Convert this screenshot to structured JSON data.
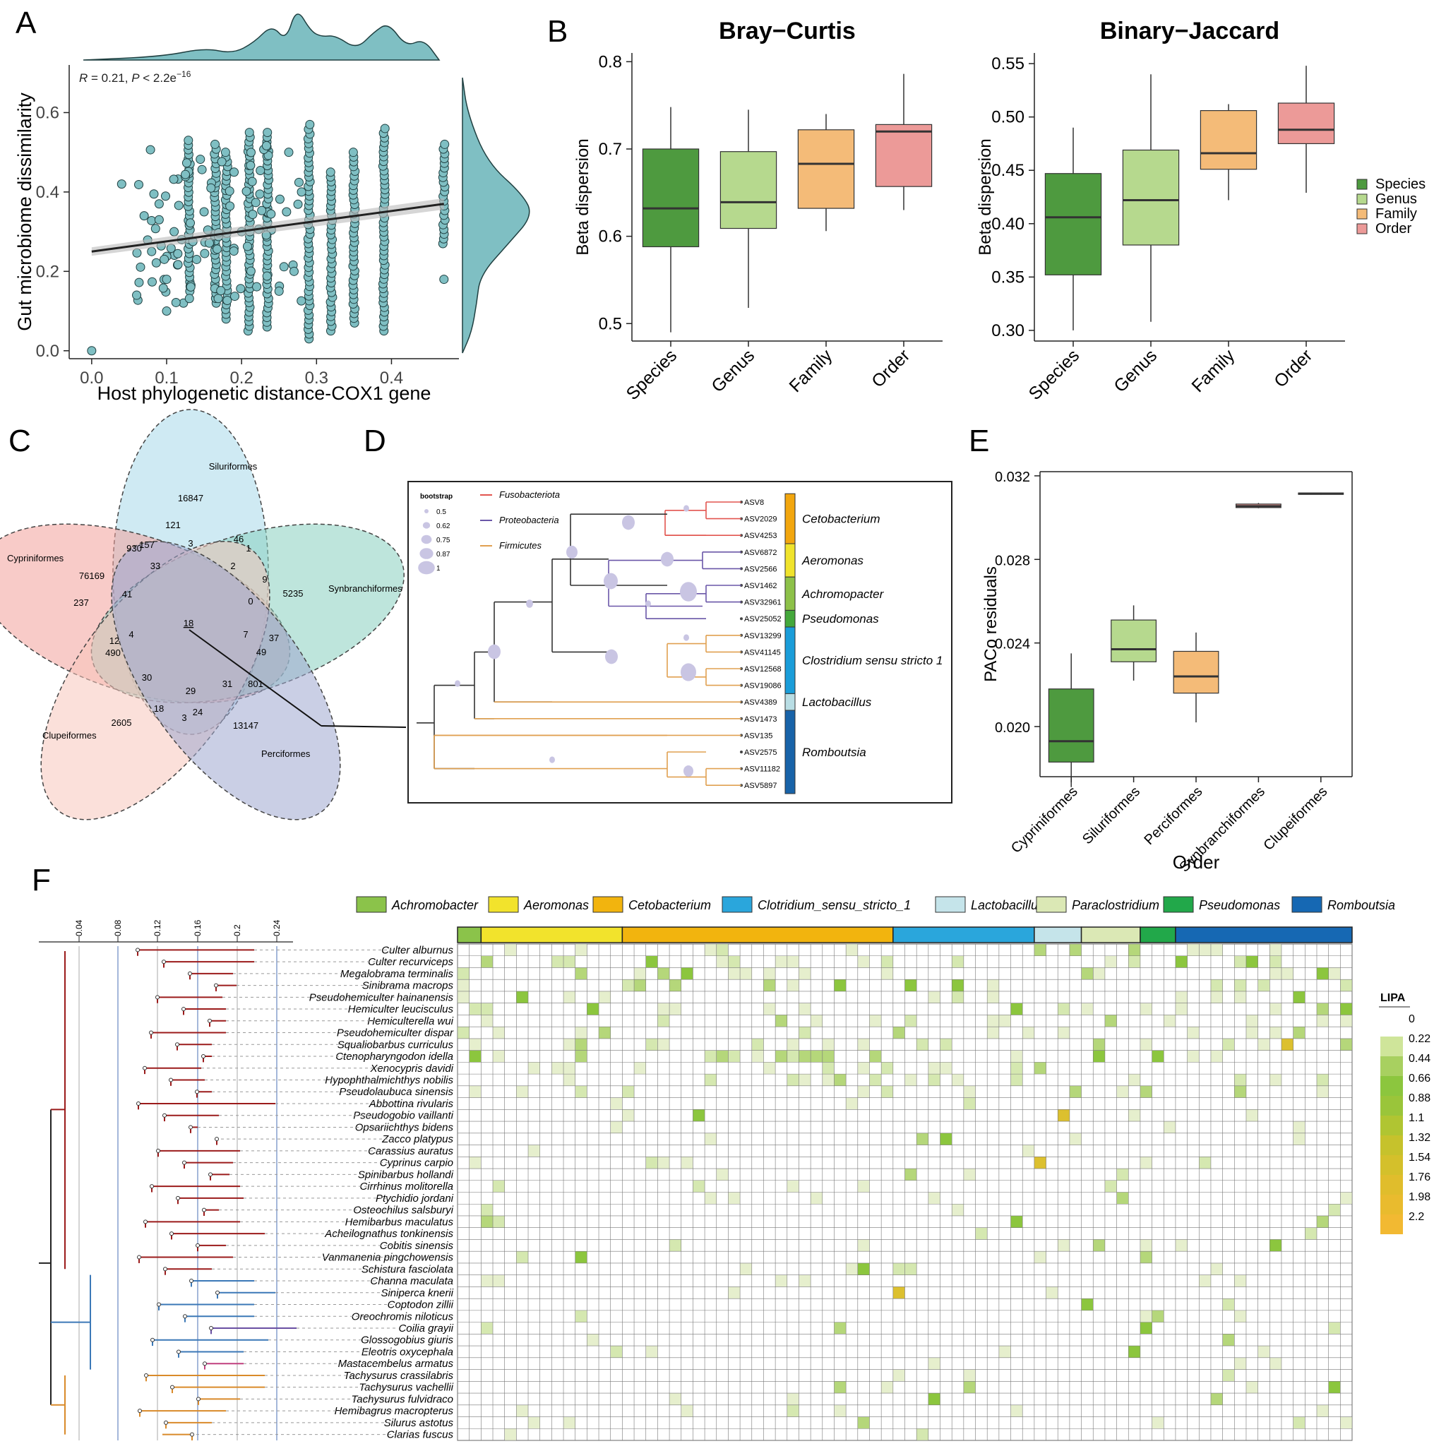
{
  "panel_labels": [
    "A",
    "B",
    "C",
    "D",
    "E",
    "F"
  ],
  "chart_data": [
    {
      "panel": "A",
      "type": "scatter",
      "xlabel": "Host phylogenetic distance-COX1 gene",
      "ylabel": "Gut microbiome dissimilarity",
      "annotation": "R = 0.21, P < 2.2e−16",
      "annotation_parts": {
        "r_label": "R",
        "r_text": " = 0.21, ",
        "p_label": "P",
        "p_text": " < 2.2e",
        "p_exp": "−16"
      },
      "xlim": [
        -0.03,
        0.49
      ],
      "ylim": [
        -0.02,
        0.72
      ],
      "x_ticks": [
        0.0,
        0.1,
        0.2,
        0.3,
        0.4
      ],
      "x_tick_labels": [
        "0.0",
        "0.1",
        "0.2",
        "0.3",
        "0.4"
      ],
      "y_ticks": [
        0.0,
        0.2,
        0.4,
        0.6
      ],
      "y_tick_labels": [
        "0.0",
        "0.2",
        "0.4",
        "0.6"
      ],
      "fit_line": {
        "x": [
          0.0,
          0.47
        ],
        "y": [
          0.25,
          0.37
        ]
      },
      "columns": [
        {
          "x": 0.29,
          "ymin": 0.03,
          "ymax": 0.57
        },
        {
          "x": 0.39,
          "ymin": 0.05,
          "ymax": 0.56
        },
        {
          "x": 0.47,
          "ymin": 0.27,
          "ymax": 0.52
        },
        {
          "x": 0.235,
          "ymin": 0.06,
          "ymax": 0.55
        },
        {
          "x": 0.21,
          "ymin": 0.05,
          "ymax": 0.55
        },
        {
          "x": 0.32,
          "ymin": 0.05,
          "ymax": 0.45
        },
        {
          "x": 0.35,
          "ymin": 0.07,
          "ymax": 0.5
        },
        {
          "x": 0.165,
          "ymin": 0.12,
          "ymax": 0.52
        },
        {
          "x": 0.18,
          "ymin": 0.08,
          "ymax": 0.5
        },
        {
          "x": 0.13,
          "ymin": 0.15,
          "ymax": 0.53
        }
      ],
      "extra_points": [
        [
          0.0,
          0.0
        ],
        [
          0.04,
          0.42
        ],
        [
          0.06,
          0.14
        ],
        [
          0.07,
          0.34
        ],
        [
          0.08,
          0.25
        ],
        [
          0.09,
          0.33
        ],
        [
          0.1,
          0.18
        ],
        [
          0.12,
          0.28
        ],
        [
          0.14,
          0.23
        ],
        [
          0.15,
          0.35
        ],
        [
          0.1,
          0.1
        ],
        [
          0.11,
          0.3
        ],
        [
          0.09,
          0.37
        ],
        [
          0.47,
          0.18
        ],
        [
          0.26,
          0.35
        ],
        [
          0.27,
          0.2
        ],
        [
          0.2,
          0.3
        ],
        [
          0.28,
          0.4
        ],
        [
          0.25,
          0.15
        ],
        [
          0.19,
          0.45
        ]
      ]
    },
    {
      "panel": "B",
      "type": "box",
      "title": "Bray−Curtis",
      "ylabel": "Beta dispersion",
      "ylim": [
        0.48,
        0.81
      ],
      "y_ticks": [
        0.5,
        0.6,
        0.7,
        0.8
      ],
      "y_tick_labels": [
        "0.5",
        "0.6",
        "0.7",
        "0.8"
      ],
      "categories": [
        "Species",
        "Genus",
        "Family",
        "Order"
      ],
      "boxes": [
        {
          "min": 0.49,
          "q1": 0.588,
          "median": 0.632,
          "q3": 0.7,
          "max": 0.748
        },
        {
          "min": 0.518,
          "q1": 0.609,
          "median": 0.639,
          "q3": 0.697,
          "max": 0.745
        },
        {
          "min": 0.606,
          "q1": 0.632,
          "median": 0.683,
          "q3": 0.722,
          "max": 0.74
        },
        {
          "min": 0.63,
          "q1": 0.657,
          "median": 0.72,
          "q3": 0.728,
          "max": 0.786
        }
      ]
    },
    {
      "panel": "B",
      "type": "box",
      "title": "Binary−Jaccard",
      "ylabel": "Beta dispersion",
      "ylim": [
        0.29,
        0.56
      ],
      "y_ticks": [
        0.3,
        0.35,
        0.4,
        0.45,
        0.5,
        0.55
      ],
      "y_tick_labels": [
        "0.30",
        "0.35",
        "0.40",
        "0.45",
        "0.50",
        "0.55"
      ],
      "categories": [
        "Species",
        "Genus",
        "Family",
        "Order"
      ],
      "boxes": [
        {
          "min": 0.3,
          "q1": 0.352,
          "median": 0.406,
          "q3": 0.447,
          "max": 0.49
        },
        {
          "min": 0.308,
          "q1": 0.38,
          "median": 0.422,
          "q3": 0.469,
          "max": 0.54
        },
        {
          "min": 0.422,
          "q1": 0.451,
          "median": 0.466,
          "q3": 0.506,
          "max": 0.512
        },
        {
          "min": 0.429,
          "q1": 0.475,
          "median": 0.488,
          "q3": 0.513,
          "max": 0.548
        }
      ],
      "legend": [
        "Species",
        "Genus",
        "Family",
        "Order"
      ]
    },
    {
      "panel": "E",
      "type": "box",
      "xlabel": "Order",
      "ylabel": "PACo residuals",
      "ylim": [
        0.0176,
        0.0322
      ],
      "y_ticks": [
        0.02,
        0.024,
        0.028,
        0.032
      ],
      "y_tick_labels": [
        "0.020",
        "0.024",
        "0.028",
        "0.032"
      ],
      "categories": [
        "Cypriniformes",
        "Siluriformes",
        "Perciformes",
        "Synbranchiformes",
        "Clupeiformes"
      ],
      "boxes": [
        {
          "min": 0.0171,
          "q1": 0.0183,
          "median": 0.0193,
          "q3": 0.0218,
          "max": 0.0235
        },
        {
          "min": 0.0222,
          "q1": 0.0231,
          "median": 0.0237,
          "q3": 0.0251,
          "max": 0.0258
        },
        {
          "min": 0.0202,
          "q1": 0.0216,
          "median": 0.0224,
          "q3": 0.0236,
          "max": 0.0245
        },
        {
          "min": 0.03045,
          "q1": 0.03048,
          "median": 0.03055,
          "q3": 0.03065,
          "max": 0.0307
        },
        {
          "min": 0.0311,
          "q1": 0.03112,
          "median": 0.03115,
          "q3": 0.03118,
          "max": 0.0312
        }
      ]
    },
    {
      "panel": "C",
      "type": "venn",
      "sets": [
        "Siluriformes",
        "Cypriniformes",
        "Synbranchiformes",
        "Clupeiformes",
        "Perciformes"
      ],
      "counts": [
        "16847",
        "121",
        "46",
        "1",
        "930",
        "157",
        "3",
        "2",
        "76169",
        "33",
        "9",
        "5235",
        "237",
        "41",
        "0",
        "18",
        "12",
        "4",
        "7",
        "37",
        "490",
        "49",
        "30",
        "29",
        "31",
        "801",
        "2605",
        "18",
        "3",
        "24",
        "13147"
      ]
    },
    {
      "panel": "D",
      "type": "tree",
      "legend_title": "bootstrap",
      "bootstrap_levels": [
        "0.5",
        "0.62",
        "0.75",
        "0.87",
        "1"
      ],
      "phyla": [
        "Fusobacteriota",
        "Proteobacteria",
        "Firmicutes"
      ],
      "leaves": [
        "ASV8",
        "ASV2029",
        "ASV4253",
        "ASV6872",
        "ASV2566",
        "ASV1462",
        "ASV32961",
        "ASV25052",
        "ASV13299",
        "ASV41145",
        "ASV12568",
        "ASV19086",
        "ASV4389",
        "ASV1473",
        "ASV135",
        "ASV2575",
        "ASV11182",
        "ASV5897"
      ],
      "genera": [
        "Cetobacterium",
        "Aeromonas",
        "Achromopacter",
        "Pseudomonas",
        "Clostridium sensu stricto 1",
        "Lactobacillus",
        "Romboutsia"
      ]
    },
    {
      "panel": "F",
      "type": "heatmap",
      "scale_title": "LIPA",
      "scale_ticks": [
        "0",
        "0.22",
        "0.44",
        "0.66",
        "0.88",
        "1.1",
        "1.32",
        "1.54",
        "1.76",
        "1.98",
        "2.2"
      ],
      "tree_ticks": [
        "0.04",
        "0.08",
        "0.12",
        "0.16",
        "0.2",
        "0.24"
      ],
      "genus_legend": [
        "Achromobacter",
        "Aeromonas",
        "Cetobacterium",
        "Clotridium_sensu_stricto_1",
        "Lactobacillus",
        "Paraclostridium",
        "Pseudomonas",
        "Romboutsia"
      ],
      "rows": [
        "Culter alburnus",
        "Culter recurviceps",
        "Megalobrama terminalis",
        "Sinibrama macrops",
        "Pseudohemiculter hainanensis",
        "Hemiculter leucisculus",
        "Hemiculterella wui",
        "Pseudohemiculter dispar",
        "Squaliobarbus curriculus",
        "Ctenopharyngodon idella",
        "Xenocypris davidi",
        "Hypophthalmichthys nobilis",
        "Pseudolaubuca sinensis",
        "Abbottina rivularis",
        "Pseudogobio vaillanti",
        "Opsariichthys bidens",
        "Zacco platypus",
        "Carassius auratus",
        "Cyprinus carpio",
        "Spinibarbus hollandi",
        "Cirrhinus molitorella",
        "Ptychidio jordani",
        "Osteochilus salsburyi",
        "Hemibarbus maculatus",
        "Acheilognathus tonkinensis",
        "Cobitis sinensis",
        "Vanmanenia pingchowensis",
        "Schistura fasciolata",
        "Channa maculata",
        "Siniperca knerii",
        "Coptodon zillii",
        "Oreochromis niloticus",
        "Coilia grayii",
        "Glossogobius giuris",
        "Eleotris oxycephala",
        "Mastacembelus armatus",
        "Tachysurus crassilabris",
        "Tachysurus vachellii",
        "Tachysurus fulvidraco",
        "Hemibagrus macropterus",
        "Silurus astotus",
        "Clarias fuscus"
      ]
    }
  ],
  "colors": {
    "teal": "#7fbfc3",
    "tealDark": "#2f6b6e",
    "species": "#4e9a3f",
    "genus": "#b6d98e",
    "family": "#f4bb78",
    "order": "#ec9a98",
    "clade_red": "#9b1b1b",
    "clade_blue": "#3b78b7",
    "clade_purple": "#6a4fa3",
    "clade_orange": "#d98a2a",
    "clade_pink": "#c0407f"
  }
}
